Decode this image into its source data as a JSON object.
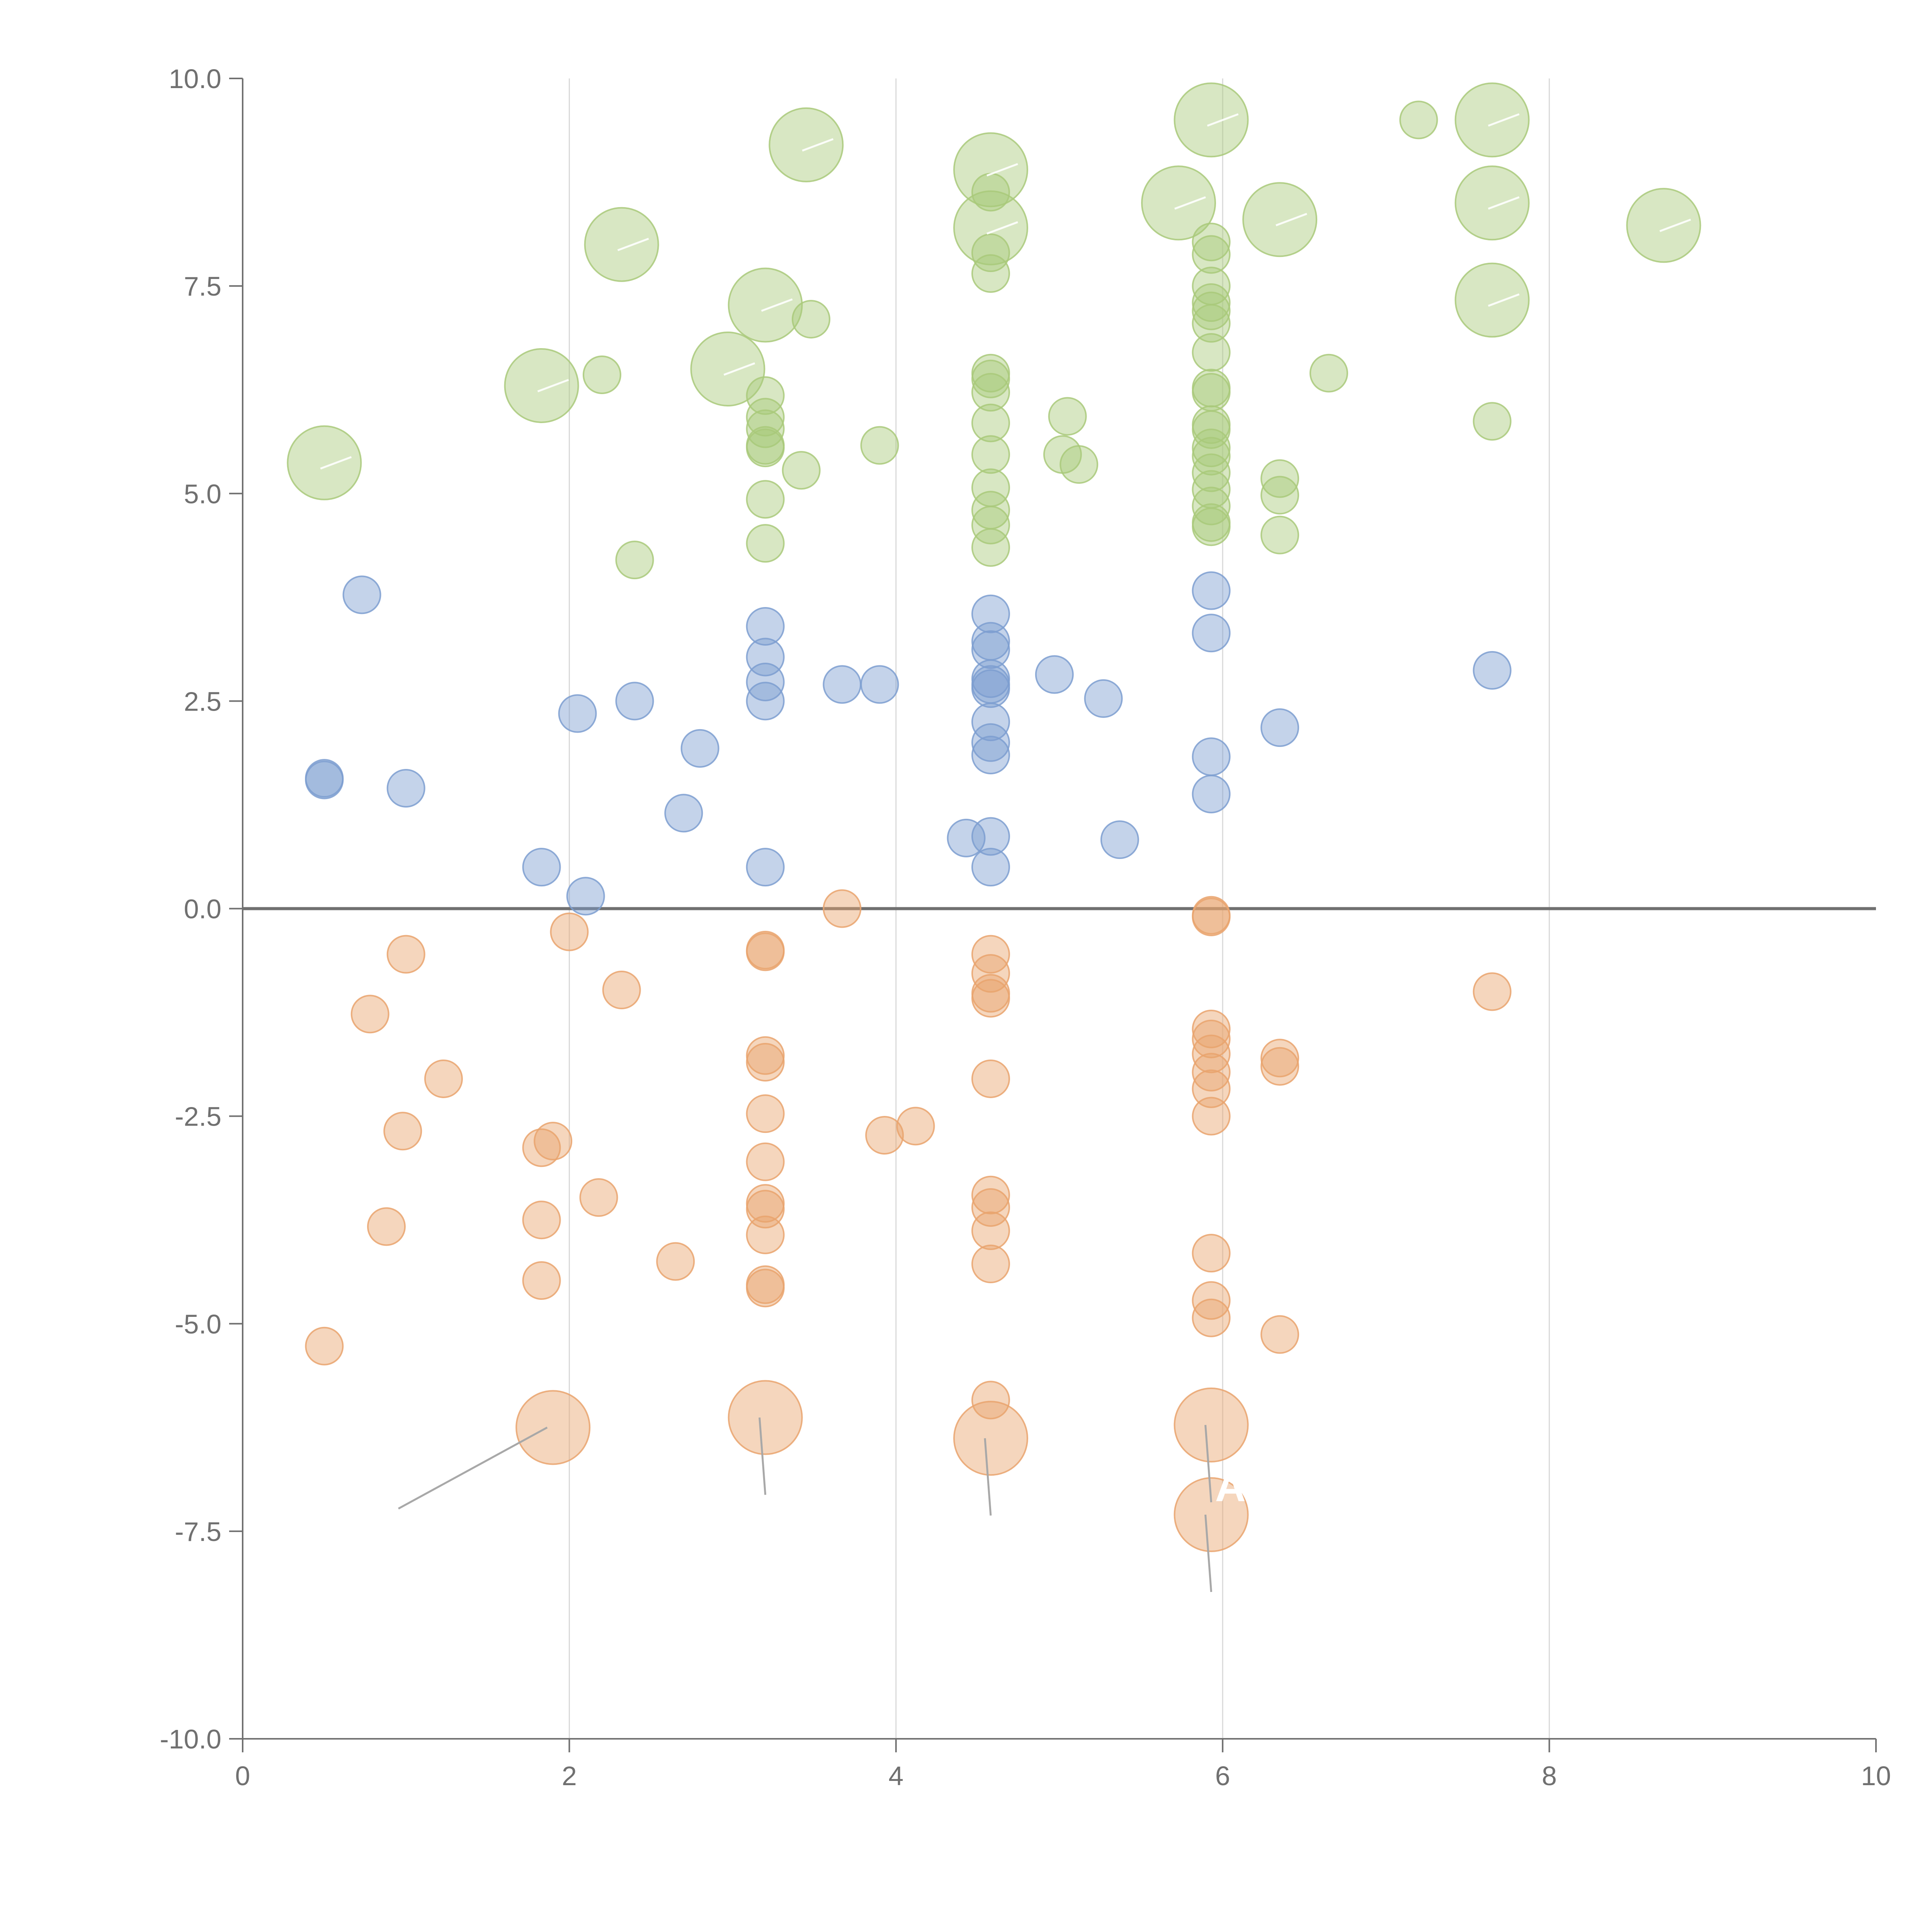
{
  "chart_data": {
    "type": "scatter",
    "title": "",
    "xlabel": "",
    "ylabel": "",
    "xlim": [
      0,
      10
    ],
    "ylim": [
      -10,
      10
    ],
    "x_ticks": [
      "0",
      "2",
      "4",
      "6",
      "8",
      "10"
    ],
    "y_ticks": [
      "-10.0",
      "-7.5",
      "-5.0",
      "-2.5",
      "0.0",
      "2.5",
      "5.0",
      "7.5",
      "10.0"
    ],
    "x_tick_values": [
      0,
      2,
      4,
      6,
      8,
      10
    ],
    "y_tick_values": [
      -10,
      -7.5,
      -5,
      -2.5,
      0,
      2.5,
      5,
      7.5,
      10
    ],
    "grid": "vertical",
    "zero_line": true,
    "point_label": "A",
    "colors": {
      "green": "#a9c97a",
      "blue": "#7d9ed0",
      "orange": "#e9a36d",
      "axis": "#707070",
      "grid": "#d9d9d9",
      "leader": "#a8a8a8"
    },
    "series": [
      {
        "color_key": "green",
        "points": [
          [
            0.5,
            5.37,
            2
          ],
          [
            1.83,
            6.3,
            2
          ],
          [
            2.2,
            6.43,
            1
          ],
          [
            2.32,
            8.0,
            2
          ],
          [
            2.4,
            4.2,
            1
          ],
          [
            2.97,
            6.5,
            2
          ],
          [
            3.2,
            7.27,
            2
          ],
          [
            3.2,
            6.18,
            1
          ],
          [
            3.2,
            5.92,
            1
          ],
          [
            3.2,
            5.78,
            1
          ],
          [
            3.2,
            5.58,
            1
          ],
          [
            3.2,
            5.55,
            1
          ],
          [
            3.2,
            4.93,
            1
          ],
          [
            3.2,
            4.4,
            1
          ],
          [
            3.42,
            5.28,
            1
          ],
          [
            3.45,
            9.2,
            2
          ],
          [
            3.48,
            7.1,
            1
          ],
          [
            3.9,
            5.58,
            1
          ],
          [
            4.58,
            8.9,
            2
          ],
          [
            4.58,
            8.63,
            1
          ],
          [
            4.58,
            8.2,
            2
          ],
          [
            4.58,
            7.9,
            1
          ],
          [
            4.58,
            7.65,
            1
          ],
          [
            4.58,
            6.45,
            1
          ],
          [
            4.58,
            6.38,
            1
          ],
          [
            4.58,
            6.22,
            1
          ],
          [
            4.58,
            5.85,
            1
          ],
          [
            4.58,
            5.47,
            1
          ],
          [
            4.58,
            5.07,
            1
          ],
          [
            4.58,
            4.8,
            1
          ],
          [
            4.58,
            4.62,
            1
          ],
          [
            4.58,
            4.35,
            1
          ],
          [
            5.05,
            5.93,
            1
          ],
          [
            5.02,
            5.47,
            1
          ],
          [
            5.12,
            5.35,
            1
          ],
          [
            5.73,
            8.5,
            2
          ],
          [
            5.93,
            9.5,
            2
          ],
          [
            5.93,
            8.03,
            1
          ],
          [
            5.93,
            7.88,
            1
          ],
          [
            5.93,
            7.5,
            1
          ],
          [
            5.93,
            7.3,
            1
          ],
          [
            5.93,
            7.2,
            1
          ],
          [
            5.93,
            7.05,
            1
          ],
          [
            5.93,
            6.7,
            1
          ],
          [
            5.93,
            6.27,
            1
          ],
          [
            5.93,
            6.22,
            1
          ],
          [
            5.93,
            5.83,
            1
          ],
          [
            5.93,
            5.77,
            1
          ],
          [
            5.93,
            5.55,
            1
          ],
          [
            5.93,
            5.45,
            1
          ],
          [
            5.93,
            5.25,
            1
          ],
          [
            5.93,
            5.05,
            1
          ],
          [
            5.93,
            4.85,
            1
          ],
          [
            5.93,
            4.65,
            1
          ],
          [
            5.93,
            4.6,
            1
          ],
          [
            6.35,
            8.3,
            2
          ],
          [
            6.35,
            5.18,
            1
          ],
          [
            6.35,
            4.98,
            1
          ],
          [
            6.35,
            4.5,
            1
          ],
          [
            6.65,
            6.45,
            1
          ],
          [
            7.2,
            9.5,
            1
          ],
          [
            7.65,
            9.5,
            2
          ],
          [
            7.65,
            8.5,
            2
          ],
          [
            7.65,
            7.33,
            2
          ],
          [
            7.65,
            5.87,
            1
          ],
          [
            8.7,
            8.23,
            2
          ]
        ]
      },
      {
        "color_key": "blue",
        "points": [
          [
            0.5,
            1.55,
            1
          ],
          [
            0.5,
            1.57,
            1
          ],
          [
            0.73,
            3.78,
            1
          ],
          [
            1.0,
            1.45,
            1
          ],
          [
            1.83,
            0.5,
            1
          ],
          [
            2.05,
            2.35,
            1
          ],
          [
            2.1,
            0.15,
            1
          ],
          [
            2.4,
            2.5,
            1
          ],
          [
            2.7,
            1.15,
            1
          ],
          [
            2.8,
            1.93,
            1
          ],
          [
            3.2,
            3.4,
            1
          ],
          [
            3.2,
            3.03,
            1
          ],
          [
            3.2,
            2.73,
            1
          ],
          [
            3.2,
            2.5,
            1
          ],
          [
            3.2,
            0.5,
            1
          ],
          [
            3.67,
            2.7,
            1
          ],
          [
            3.9,
            2.7,
            1
          ],
          [
            4.43,
            0.85,
            1
          ],
          [
            4.58,
            3.55,
            1
          ],
          [
            4.58,
            3.22,
            1
          ],
          [
            4.58,
            3.12,
            1
          ],
          [
            4.58,
            2.77,
            1
          ],
          [
            4.58,
            2.7,
            1
          ],
          [
            4.58,
            2.65,
            1
          ],
          [
            4.58,
            2.25,
            1
          ],
          [
            4.58,
            2.0,
            1
          ],
          [
            4.58,
            1.85,
            1
          ],
          [
            4.58,
            0.87,
            1
          ],
          [
            4.58,
            0.5,
            1
          ],
          [
            4.97,
            2.82,
            1
          ],
          [
            5.27,
            2.53,
            1
          ],
          [
            5.37,
            0.83,
            1
          ],
          [
            5.93,
            3.83,
            1
          ],
          [
            5.93,
            3.32,
            1
          ],
          [
            5.93,
            1.83,
            1
          ],
          [
            5.93,
            1.38,
            1
          ],
          [
            6.35,
            2.18,
            1
          ],
          [
            7.65,
            2.87,
            1
          ]
        ]
      },
      {
        "color_key": "orange",
        "points": [
          [
            0.5,
            -5.27,
            1
          ],
          [
            0.78,
            -1.27,
            1
          ],
          [
            0.88,
            -3.83,
            1
          ],
          [
            0.98,
            -2.68,
            1
          ],
          [
            1.0,
            -0.55,
            1
          ],
          [
            1.23,
            -2.05,
            1
          ],
          [
            1.83,
            -2.88,
            1
          ],
          [
            1.83,
            -3.75,
            1
          ],
          [
            1.83,
            -4.48,
            1
          ],
          [
            1.9,
            -2.8,
            1
          ],
          [
            1.9,
            -6.25,
            2
          ],
          [
            2.0,
            -0.28,
            1
          ],
          [
            2.18,
            -3.48,
            1
          ],
          [
            2.32,
            -0.98,
            1
          ],
          [
            2.65,
            -4.25,
            1
          ],
          [
            3.2,
            -0.5,
            1
          ],
          [
            3.2,
            -0.52,
            1
          ],
          [
            3.2,
            -1.77,
            1
          ],
          [
            3.2,
            -1.85,
            1
          ],
          [
            3.2,
            -2.47,
            1
          ],
          [
            3.2,
            -3.05,
            1
          ],
          [
            3.2,
            -3.55,
            1
          ],
          [
            3.2,
            -3.62,
            1
          ],
          [
            3.2,
            -3.93,
            1
          ],
          [
            3.2,
            -4.53,
            1
          ],
          [
            3.2,
            -4.57,
            1
          ],
          [
            3.2,
            -6.13,
            2
          ],
          [
            3.67,
            0.0,
            1
          ],
          [
            3.93,
            -2.73,
            1
          ],
          [
            4.12,
            -2.62,
            1
          ],
          [
            4.58,
            -0.55,
            1
          ],
          [
            4.58,
            -0.78,
            1
          ],
          [
            4.58,
            -1.02,
            1
          ],
          [
            4.58,
            -1.08,
            1
          ],
          [
            4.58,
            -2.05,
            1
          ],
          [
            4.58,
            -3.45,
            1
          ],
          [
            4.58,
            -3.6,
            1
          ],
          [
            4.58,
            -3.88,
            1
          ],
          [
            4.58,
            -4.28,
            1
          ],
          [
            4.58,
            -5.92,
            1
          ],
          [
            4.58,
            -6.38,
            2
          ],
          [
            5.93,
            -0.08,
            1
          ],
          [
            5.93,
            -0.1,
            1
          ],
          [
            5.93,
            -1.45,
            1
          ],
          [
            5.93,
            -1.57,
            1
          ],
          [
            5.93,
            -1.75,
            1
          ],
          [
            5.93,
            -1.97,
            1
          ],
          [
            5.93,
            -2.17,
            1
          ],
          [
            5.93,
            -2.5,
            1
          ],
          [
            5.93,
            -4.15,
            1
          ],
          [
            5.93,
            -4.72,
            1
          ],
          [
            5.93,
            -4.93,
            1
          ],
          [
            5.93,
            -6.22,
            2
          ],
          [
            5.93,
            -7.3,
            2
          ],
          [
            6.35,
            -1.8,
            1
          ],
          [
            6.35,
            -1.9,
            1
          ],
          [
            6.35,
            -5.13,
            1
          ],
          [
            7.65,
            -1.0,
            1
          ]
        ]
      }
    ]
  }
}
